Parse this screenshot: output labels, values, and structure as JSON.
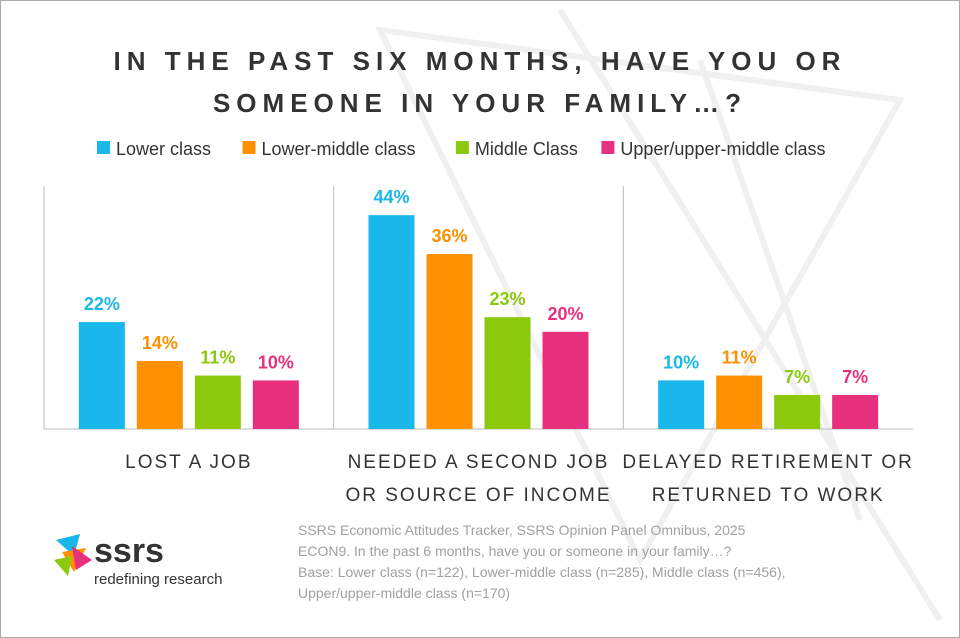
{
  "chart_data": {
    "type": "bar",
    "title": "IN THE PAST SIX MONTHS, HAVE YOU OR SOMEONE IN YOUR FAMILY…?",
    "categories": [
      "LOST A JOB",
      "NEEDED A SECOND JOB OR SOURCE OF INCOME",
      "DELAYED RETIREMENT OR RETURNED TO WORK"
    ],
    "series": [
      {
        "name": "Lower class",
        "color": "#1ab7ea",
        "values": [
          22,
          44,
          10
        ],
        "value_labels": [
          "22%",
          "44%",
          "10%"
        ]
      },
      {
        "name": "Lower-middle class",
        "color": "#ff9000",
        "values": [
          14,
          36,
          11
        ],
        "value_labels": [
          "14%",
          "36%",
          "11%"
        ]
      },
      {
        "name": "Middle Class",
        "color": "#8cc80c",
        "values": [
          11,
          23,
          7
        ],
        "value_labels": [
          "11%",
          "23%",
          "7%"
        ]
      },
      {
        "name": "Upper/upper-middle class",
        "color": "#e8317e",
        "values": [
          10,
          20,
          7
        ],
        "value_labels": [
          "10%",
          "20%",
          "7%"
        ]
      }
    ],
    "ylim": [
      0,
      50
    ]
  },
  "footer": {
    "logo": "ssrs",
    "tagline": "redefining research",
    "source": [
      "SSRS Economic Attitudes Tracker, SSRS Opinion Panel Omnibus, 2025",
      "ECON9. In the past 6 months, have you or someone in your family…?",
      "Base: Lower class (n=122), Lower-middle class (n=285), Middle class (n=456),",
      "Upper/upper-middle class (n=170)"
    ]
  }
}
